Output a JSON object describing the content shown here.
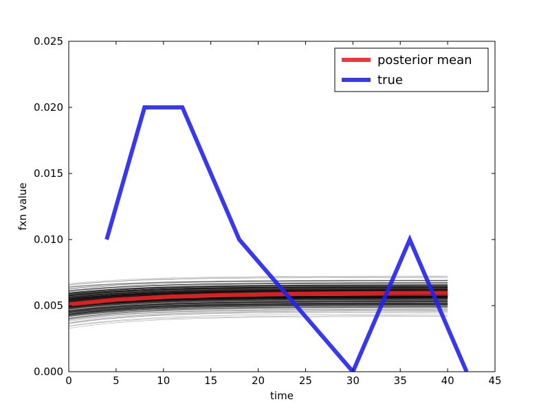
{
  "chart_data": {
    "type": "line",
    "xlabel": "time",
    "ylabel": "fxn value",
    "xlim": [
      0,
      45
    ],
    "ylim": [
      0,
      0.025
    ],
    "xticks": [
      {
        "value": 0,
        "label": "0"
      },
      {
        "value": 5,
        "label": "5"
      },
      {
        "value": 10,
        "label": "10"
      },
      {
        "value": 15,
        "label": "15"
      },
      {
        "value": 20,
        "label": "20"
      },
      {
        "value": 25,
        "label": "25"
      },
      {
        "value": 30,
        "label": "30"
      },
      {
        "value": 35,
        "label": "35"
      },
      {
        "value": 40,
        "label": "40"
      },
      {
        "value": 45,
        "label": "45"
      }
    ],
    "yticks": [
      {
        "value": 0.0,
        "label": "0.000"
      },
      {
        "value": 0.005,
        "label": "0.005"
      },
      {
        "value": 0.01,
        "label": "0.010"
      },
      {
        "value": 0.015,
        "label": "0.015"
      },
      {
        "value": 0.02,
        "label": "0.020"
      },
      {
        "value": 0.025,
        "label": "0.025"
      }
    ],
    "grid": false,
    "legend_position": "top-right",
    "series": [
      {
        "name": "posterior mean",
        "color": "#ee2222",
        "x": [
          0,
          5,
          10,
          15,
          20,
          25,
          30,
          35,
          40
        ],
        "y": [
          0.0051,
          0.00545,
          0.00565,
          0.00577,
          0.00585,
          0.0059,
          0.00593,
          0.00595,
          0.00596
        ]
      },
      {
        "name": "true",
        "color": "#2222ee",
        "x": [
          4,
          8,
          12,
          18,
          30,
          36,
          42
        ],
        "y": [
          0.01,
          0.02,
          0.02,
          0.01,
          0.0,
          0.01,
          0.0
        ]
      }
    ],
    "posterior_samples": {
      "color": "#000000",
      "x_range": [
        0,
        40
      ],
      "count": 300,
      "start_range": [
        0.0022,
        0.008
      ],
      "end_range": [
        0.003,
        0.0086
      ]
    }
  }
}
